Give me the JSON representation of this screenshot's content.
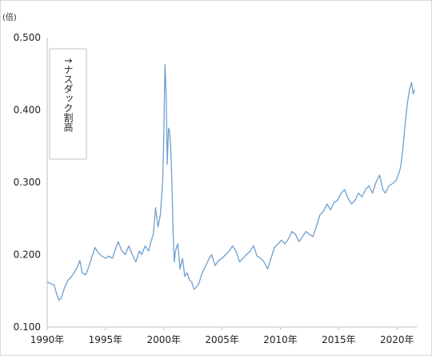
{
  "chart_data": {
    "type": "line",
    "y_unit_label": "(倍)",
    "annotation": "↑ナスダック割高",
    "x_ticks": [
      {
        "year": 1990,
        "label": "1990年"
      },
      {
        "year": 1995,
        "label": "1995年"
      },
      {
        "year": 2000,
        "label": "2000年"
      },
      {
        "year": 2005,
        "label": "2005年"
      },
      {
        "year": 2010,
        "label": "2010年"
      },
      {
        "year": 2015,
        "label": "2015年"
      },
      {
        "year": 2020,
        "label": "2020年"
      }
    ],
    "y_ticks": [
      {
        "value": 0.1,
        "label": "0.100"
      },
      {
        "value": 0.2,
        "label": "0.200"
      },
      {
        "value": 0.3,
        "label": "0.300"
      },
      {
        "value": 0.4,
        "label": "0.400"
      },
      {
        "value": 0.5,
        "label": "0.500"
      }
    ],
    "xlim": [
      1990,
      2021.7
    ],
    "ylim": [
      0.1,
      0.5
    ],
    "grid": false,
    "legend": "none",
    "series": [
      {
        "color": "#6f9fce",
        "points": [
          [
            1990.0,
            0.162
          ],
          [
            1990.3,
            0.16
          ],
          [
            1990.6,
            0.158
          ],
          [
            1990.8,
            0.146
          ],
          [
            1991.0,
            0.137
          ],
          [
            1991.2,
            0.14
          ],
          [
            1991.5,
            0.155
          ],
          [
            1991.8,
            0.165
          ],
          [
            1992.0,
            0.168
          ],
          [
            1992.3,
            0.175
          ],
          [
            1992.6,
            0.183
          ],
          [
            1992.8,
            0.192
          ],
          [
            1993.0,
            0.175
          ],
          [
            1993.3,
            0.172
          ],
          [
            1993.6,
            0.185
          ],
          [
            1993.9,
            0.2
          ],
          [
            1994.1,
            0.21
          ],
          [
            1994.4,
            0.202
          ],
          [
            1994.7,
            0.198
          ],
          [
            1995.0,
            0.195
          ],
          [
            1995.3,
            0.198
          ],
          [
            1995.6,
            0.195
          ],
          [
            1995.9,
            0.21
          ],
          [
            1996.1,
            0.218
          ],
          [
            1996.4,
            0.205
          ],
          [
            1996.7,
            0.2
          ],
          [
            1997.0,
            0.212
          ],
          [
            1997.3,
            0.2
          ],
          [
            1997.6,
            0.19
          ],
          [
            1997.9,
            0.205
          ],
          [
            1998.1,
            0.2
          ],
          [
            1998.4,
            0.212
          ],
          [
            1998.7,
            0.205
          ],
          [
            1998.9,
            0.218
          ],
          [
            1999.1,
            0.228
          ],
          [
            1999.3,
            0.265
          ],
          [
            1999.5,
            0.238
          ],
          [
            1999.7,
            0.255
          ],
          [
            1999.9,
            0.3
          ],
          [
            2000.0,
            0.36
          ],
          [
            2000.1,
            0.463
          ],
          [
            2000.2,
            0.42
          ],
          [
            2000.3,
            0.325
          ],
          [
            2000.4,
            0.375
          ],
          [
            2000.5,
            0.37
          ],
          [
            2000.6,
            0.345
          ],
          [
            2000.7,
            0.3
          ],
          [
            2000.8,
            0.23
          ],
          [
            2000.9,
            0.19
          ],
          [
            2001.0,
            0.205
          ],
          [
            2001.2,
            0.215
          ],
          [
            2001.4,
            0.18
          ],
          [
            2001.6,
            0.195
          ],
          [
            2001.8,
            0.17
          ],
          [
            2002.0,
            0.175
          ],
          [
            2002.2,
            0.165
          ],
          [
            2002.4,
            0.162
          ],
          [
            2002.6,
            0.152
          ],
          [
            2002.8,
            0.155
          ],
          [
            2003.0,
            0.16
          ],
          [
            2003.3,
            0.175
          ],
          [
            2003.6,
            0.185
          ],
          [
            2003.9,
            0.195
          ],
          [
            2004.1,
            0.2
          ],
          [
            2004.4,
            0.185
          ],
          [
            2004.7,
            0.192
          ],
          [
            2005.0,
            0.195
          ],
          [
            2005.3,
            0.2
          ],
          [
            2005.6,
            0.205
          ],
          [
            2005.9,
            0.212
          ],
          [
            2006.2,
            0.205
          ],
          [
            2006.5,
            0.19
          ],
          [
            2006.8,
            0.195
          ],
          [
            2007.1,
            0.2
          ],
          [
            2007.4,
            0.205
          ],
          [
            2007.7,
            0.212
          ],
          [
            2008.0,
            0.198
          ],
          [
            2008.3,
            0.195
          ],
          [
            2008.6,
            0.19
          ],
          [
            2008.9,
            0.18
          ],
          [
            2009.2,
            0.195
          ],
          [
            2009.5,
            0.21
          ],
          [
            2009.8,
            0.215
          ],
          [
            2010.1,
            0.22
          ],
          [
            2010.4,
            0.215
          ],
          [
            2010.7,
            0.222
          ],
          [
            2011.0,
            0.232
          ],
          [
            2011.3,
            0.228
          ],
          [
            2011.6,
            0.218
          ],
          [
            2011.9,
            0.225
          ],
          [
            2012.2,
            0.232
          ],
          [
            2012.5,
            0.228
          ],
          [
            2012.8,
            0.225
          ],
          [
            2013.1,
            0.24
          ],
          [
            2013.4,
            0.255
          ],
          [
            2013.7,
            0.26
          ],
          [
            2014.0,
            0.27
          ],
          [
            2014.3,
            0.262
          ],
          [
            2014.6,
            0.272
          ],
          [
            2014.9,
            0.275
          ],
          [
            2015.2,
            0.285
          ],
          [
            2015.5,
            0.29
          ],
          [
            2015.8,
            0.278
          ],
          [
            2016.1,
            0.27
          ],
          [
            2016.4,
            0.275
          ],
          [
            2016.7,
            0.285
          ],
          [
            2017.0,
            0.28
          ],
          [
            2017.3,
            0.29
          ],
          [
            2017.6,
            0.295
          ],
          [
            2017.9,
            0.285
          ],
          [
            2018.2,
            0.3
          ],
          [
            2018.5,
            0.31
          ],
          [
            2018.8,
            0.29
          ],
          [
            2019.0,
            0.285
          ],
          [
            2019.3,
            0.295
          ],
          [
            2019.6,
            0.298
          ],
          [
            2019.9,
            0.302
          ],
          [
            2020.1,
            0.31
          ],
          [
            2020.3,
            0.32
          ],
          [
            2020.5,
            0.345
          ],
          [
            2020.7,
            0.38
          ],
          [
            2020.9,
            0.41
          ],
          [
            2021.1,
            0.43
          ],
          [
            2021.25,
            0.438
          ],
          [
            2021.4,
            0.422
          ],
          [
            2021.5,
            0.428
          ]
        ]
      }
    ]
  }
}
